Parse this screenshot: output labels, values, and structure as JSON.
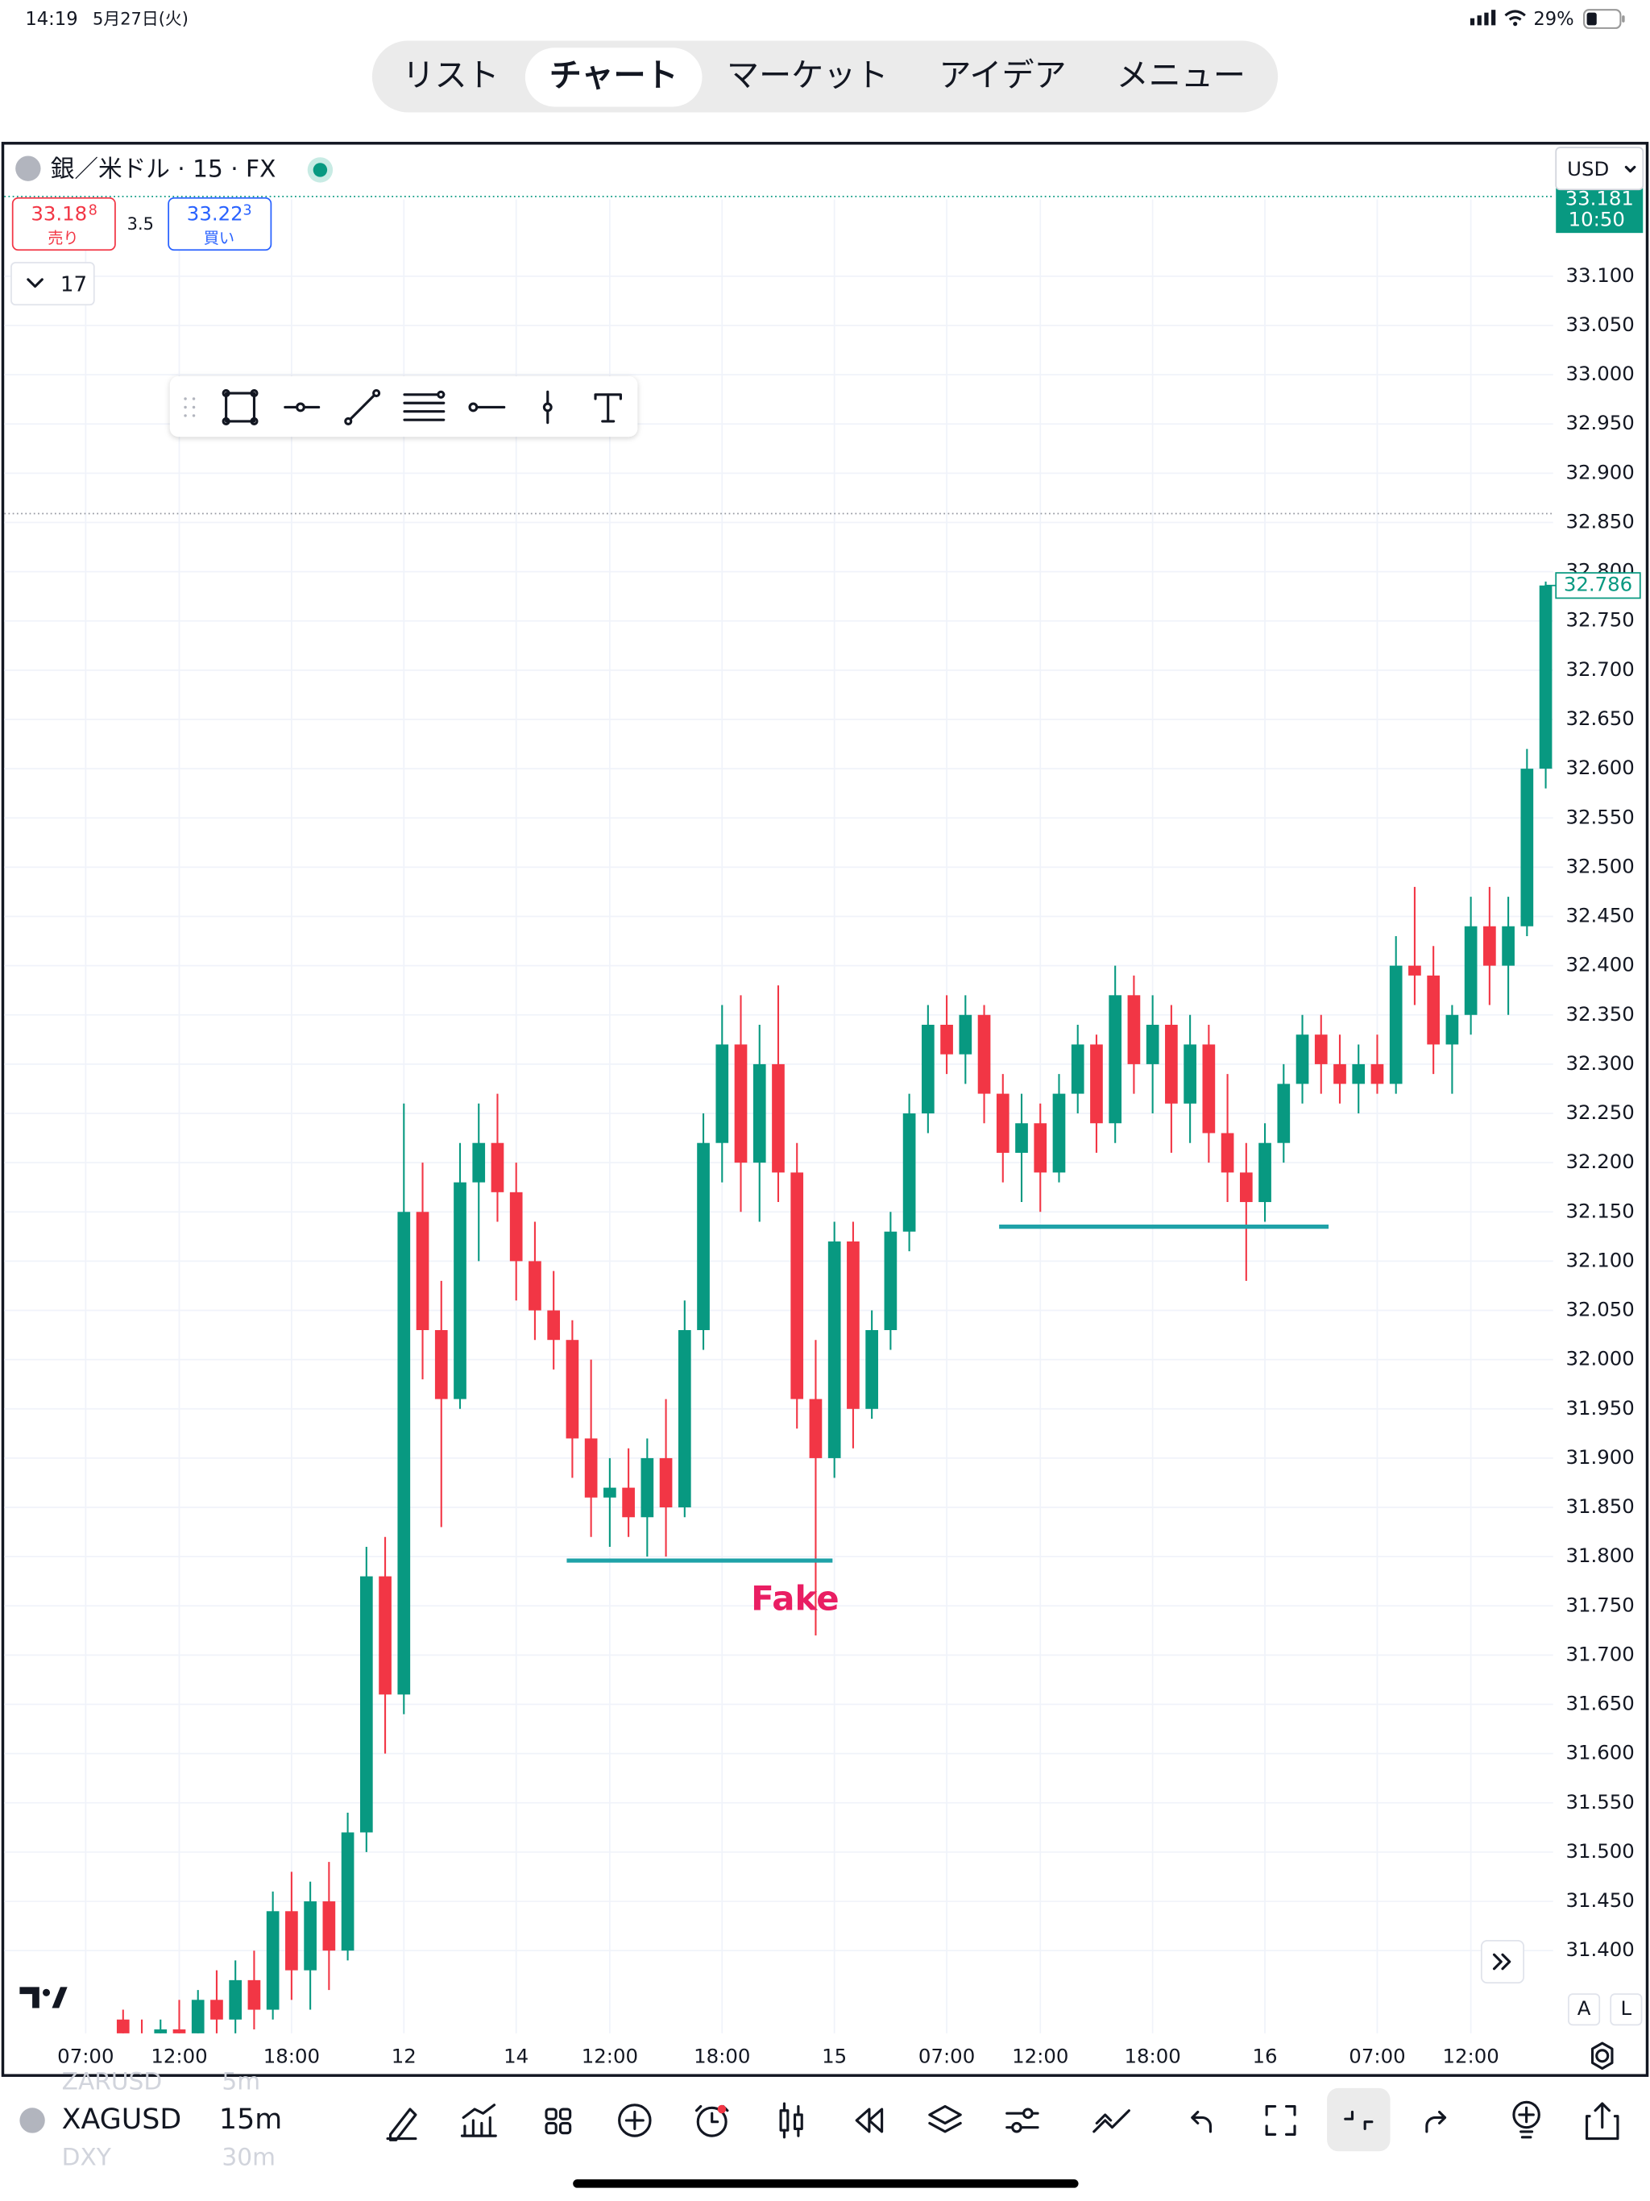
{
  "status_bar": {
    "time": "14:19",
    "date": "5月27日(火)",
    "battery": "29%"
  },
  "tabs": [
    "リスト",
    "チャート",
    "マーケット",
    "アイデア",
    "メニュー"
  ],
  "active_tab": 1,
  "symbol_header": {
    "title": "銀／米ドル · 15 · FX",
    "currency": "USD",
    "sell": {
      "price": "33.18",
      "pip": "8",
      "label": "売り"
    },
    "spread": "3.5",
    "buy": {
      "price": "33.22",
      "pip": "3",
      "label": "買い"
    },
    "indicator_count": "17"
  },
  "chart_data": {
    "type": "candlestick",
    "categories": [
      "07:00",
      null,
      null,
      null,
      null,
      "12:00",
      null,
      null,
      null,
      null,
      null,
      "18:00",
      null,
      null,
      null,
      null,
      null,
      "12",
      null,
      null,
      null,
      null,
      null,
      "14",
      null,
      null,
      null,
      null,
      "12:00",
      null,
      null,
      null,
      null,
      null,
      "18:00",
      null,
      null,
      null,
      null,
      null,
      "15",
      null,
      null,
      null,
      null,
      null,
      "07:00",
      null,
      null,
      null,
      null,
      "12:00",
      null,
      null,
      null,
      null,
      null,
      "18:00",
      null,
      null,
      null,
      null,
      null,
      "16",
      null,
      null,
      null,
      null,
      null,
      "07:00",
      null,
      null,
      null,
      null,
      "12:00",
      null,
      null,
      null,
      null
    ],
    "open": [
      null,
      null,
      31.33,
      31.31,
      31.3,
      31.32,
      31.31,
      31.35,
      31.33,
      31.37,
      31.34,
      31.44,
      31.38,
      31.45,
      31.4,
      31.52,
      31.78,
      31.66,
      32.15,
      32.03,
      31.96,
      32.18,
      32.22,
      32.17,
      32.1,
      32.05,
      32.02,
      31.92,
      31.86,
      31.87,
      31.84,
      31.9,
      31.85,
      32.03,
      32.22,
      32.32,
      32.2,
      32.3,
      32.19,
      31.96,
      31.9,
      32.12,
      31.95,
      32.03,
      32.13,
      32.25,
      32.34,
      32.31,
      32.35,
      32.27,
      32.21,
      32.24,
      32.19,
      32.27,
      32.32,
      32.24,
      32.37,
      32.3,
      32.34,
      32.26,
      32.32,
      32.23,
      32.19,
      32.16,
      32.22,
      32.28,
      32.33,
      32.3,
      32.28,
      32.3,
      32.28,
      32.4,
      32.39,
      32.32,
      32.35,
      32.44,
      32.4,
      32.44,
      32.6
    ],
    "high": [
      null,
      null,
      31.34,
      31.33,
      31.33,
      31.35,
      31.36,
      31.38,
      31.39,
      31.4,
      31.46,
      31.48,
      31.47,
      31.49,
      31.54,
      31.81,
      31.82,
      32.26,
      32.2,
      32.08,
      32.22,
      32.26,
      32.27,
      32.2,
      32.14,
      32.09,
      32.04,
      32.0,
      31.9,
      31.91,
      31.92,
      31.96,
      32.06,
      32.25,
      32.36,
      32.37,
      32.34,
      32.38,
      32.22,
      32.02,
      32.14,
      32.14,
      32.05,
      32.15,
      32.27,
      32.36,
      32.37,
      32.37,
      32.36,
      32.29,
      32.27,
      32.26,
      32.29,
      32.34,
      32.33,
      32.4,
      32.39,
      32.37,
      32.36,
      32.35,
      32.34,
      32.29,
      32.22,
      32.24,
      32.3,
      32.35,
      32.35,
      32.33,
      32.32,
      32.33,
      32.43,
      32.48,
      32.42,
      32.36,
      32.47,
      32.48,
      32.47,
      32.62,
      32.79
    ],
    "low": [
      null,
      null,
      31.29,
      31.28,
      31.28,
      31.3,
      31.3,
      31.31,
      31.31,
      31.32,
      31.33,
      31.35,
      31.34,
      31.36,
      31.39,
      31.5,
      31.6,
      31.64,
      31.98,
      31.83,
      31.95,
      32.1,
      32.14,
      32.06,
      32.02,
      31.99,
      31.88,
      31.82,
      31.81,
      31.82,
      31.8,
      31.8,
      31.84,
      32.01,
      32.18,
      32.15,
      32.14,
      32.16,
      31.93,
      31.72,
      31.88,
      31.91,
      31.94,
      32.01,
      32.11,
      32.23,
      32.29,
      32.28,
      32.24,
      32.18,
      32.16,
      32.15,
      32.18,
      32.25,
      32.21,
      32.22,
      32.27,
      32.25,
      32.21,
      32.22,
      32.2,
      32.16,
      32.08,
      32.14,
      32.2,
      32.26,
      32.27,
      32.26,
      32.25,
      32.27,
      32.27,
      32.36,
      32.29,
      32.27,
      32.33,
      32.36,
      32.35,
      32.43,
      32.58
    ],
    "close": [
      null,
      null,
      31.31,
      31.3,
      31.32,
      31.31,
      31.35,
      31.33,
      31.37,
      31.34,
      31.44,
      31.38,
      31.45,
      31.4,
      31.52,
      31.78,
      31.66,
      32.15,
      32.03,
      31.96,
      32.18,
      32.22,
      32.17,
      32.1,
      32.05,
      32.02,
      31.92,
      31.86,
      31.87,
      31.84,
      31.9,
      31.85,
      32.03,
      32.22,
      32.32,
      32.2,
      32.3,
      32.19,
      31.96,
      31.9,
      32.12,
      31.95,
      32.03,
      32.13,
      32.25,
      32.34,
      32.31,
      32.35,
      32.27,
      32.21,
      32.24,
      32.19,
      32.27,
      32.32,
      32.24,
      32.37,
      32.3,
      32.34,
      32.26,
      32.32,
      32.23,
      32.19,
      32.16,
      32.22,
      32.28,
      32.33,
      32.3,
      32.28,
      32.3,
      32.28,
      32.4,
      32.39,
      32.32,
      32.35,
      32.44,
      32.4,
      32.44,
      32.6,
      32.786
    ],
    "up_color": "#089981",
    "down_color": "#f23645",
    "ylim": [
      31.316,
      33.178
    ],
    "yticks": [
      {
        "value": 31.4,
        "label": "31.400"
      },
      {
        "value": 31.45,
        "label": "31.450"
      },
      {
        "value": 31.5,
        "label": "31.500"
      },
      {
        "value": 31.55,
        "label": "31.550"
      },
      {
        "value": 31.6,
        "label": "31.600"
      },
      {
        "value": 31.65,
        "label": "31.650"
      },
      {
        "value": 31.7,
        "label": "31.700"
      },
      {
        "value": 31.75,
        "label": "31.750"
      },
      {
        "value": 31.8,
        "label": "31.800"
      },
      {
        "value": 31.85,
        "label": "31.850"
      },
      {
        "value": 31.9,
        "label": "31.900"
      },
      {
        "value": 31.95,
        "label": "31.950"
      },
      {
        "value": 32,
        "label": "32.000"
      },
      {
        "value": 32.05,
        "label": "32.050"
      },
      {
        "value": 32.1,
        "label": "32.100"
      },
      {
        "value": 32.15,
        "label": "32.150"
      },
      {
        "value": 32.2,
        "label": "32.200"
      },
      {
        "value": 32.25,
        "label": "32.250"
      },
      {
        "value": 32.3,
        "label": "32.300"
      },
      {
        "value": 32.35,
        "label": "32.350"
      },
      {
        "value": 32.4,
        "label": "32.400"
      },
      {
        "value": 32.45,
        "label": "32.450"
      },
      {
        "value": 32.5,
        "label": "32.500"
      },
      {
        "value": 32.55,
        "label": "32.550"
      },
      {
        "value": 32.6,
        "label": "32.600"
      },
      {
        "value": 32.65,
        "label": "32.650"
      },
      {
        "value": 32.7,
        "label": "32.700"
      },
      {
        "value": 32.75,
        "label": "32.750"
      },
      {
        "value": 32.8,
        "label": "32.800"
      },
      {
        "value": 32.85,
        "label": "32.850"
      },
      {
        "value": 32.9,
        "label": "32.900"
      },
      {
        "value": 32.95,
        "label": "32.950"
      },
      {
        "value": 33,
        "label": "33.000"
      },
      {
        "value": 33.05,
        "label": "33.050"
      },
      {
        "value": 33.1,
        "label": "33.100"
      }
    ],
    "grid": true,
    "last_price": {
      "value": 32.786,
      "label": "32.786"
    },
    "ask_line": {
      "value": 33.181,
      "label": "33.181",
      "time": "10:50"
    },
    "dotted_level": 32.859,
    "level_color": "#1fa2a8",
    "levels": [
      {
        "value": 31.796,
        "x0": 25.7,
        "x1": 39.9
      },
      {
        "value": 32.135,
        "x0": 48.8,
        "x1": 66.4
      }
    ],
    "annotations": [
      {
        "text": "Fake",
        "x": 37.9,
        "y": 31.755,
        "color": "#e91e63"
      }
    ]
  },
  "axis_buttons": [
    "A",
    "L"
  ],
  "bottom_bar": {
    "symbol": "XAGUSD",
    "interval": "15m",
    "prev_symbol": "ZARUSD",
    "prev_interval": "5m",
    "next_symbol": "DXY",
    "next_interval": "30m"
  }
}
